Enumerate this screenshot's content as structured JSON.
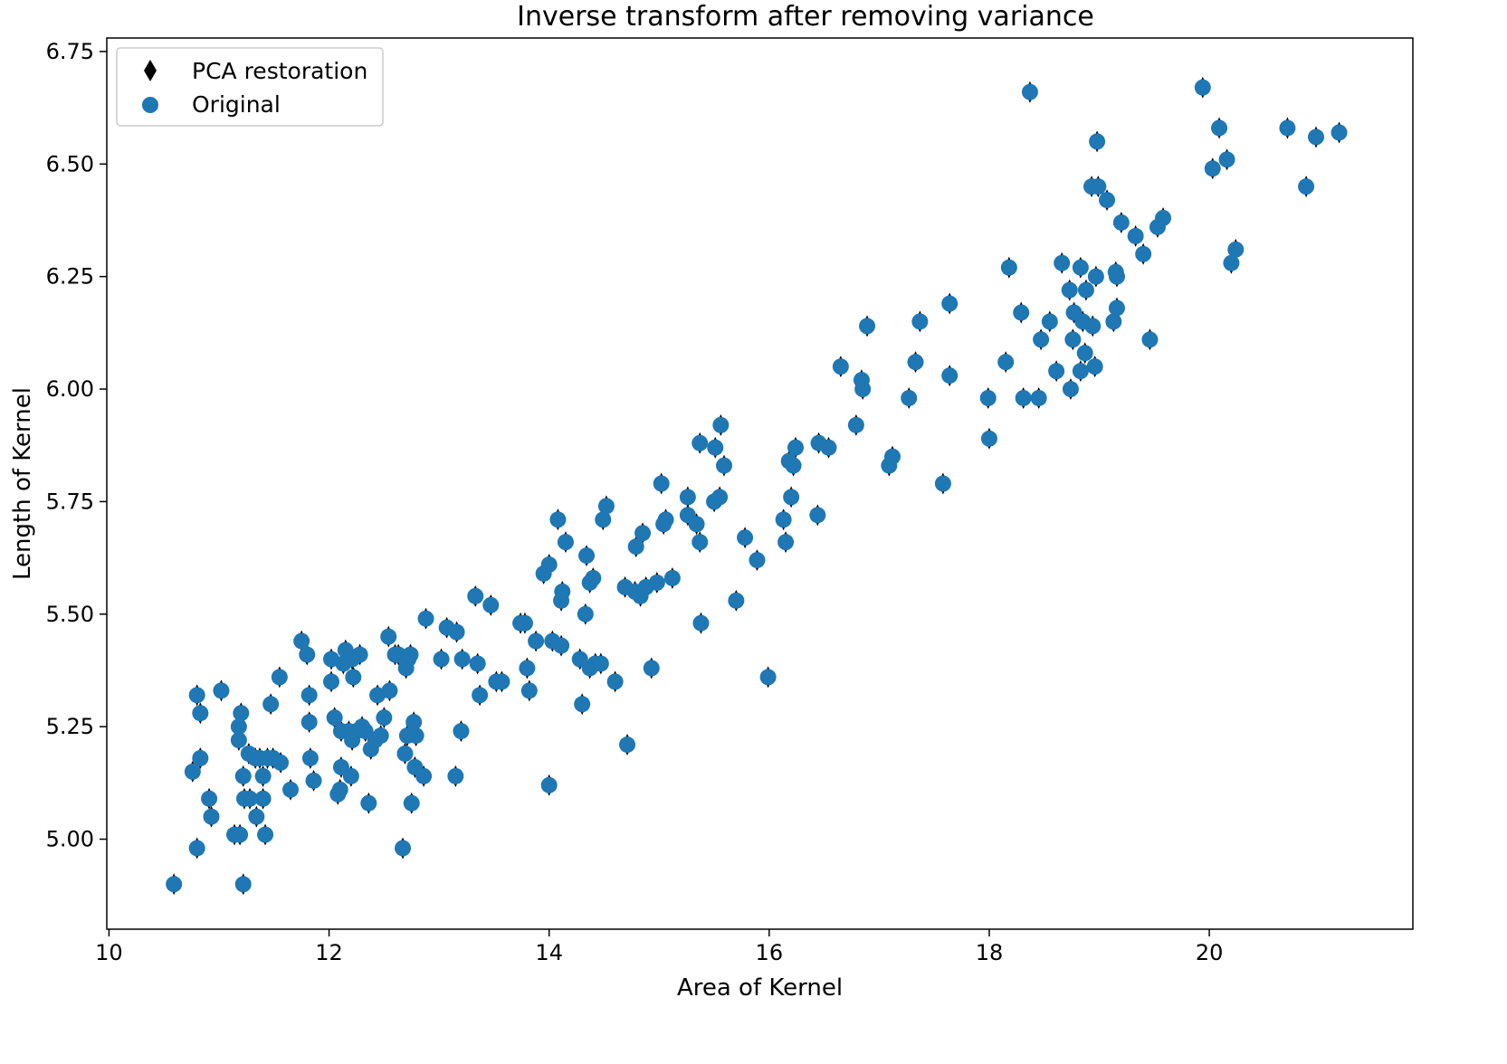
{
  "chart_data": {
    "type": "scatter",
    "title": "Inverse transform after removing variance",
    "xlabel": "Area of Kernel",
    "ylabel": "Length of Kernel",
    "xlim": [
      9.98,
      21.85
    ],
    "ylim": [
      4.8,
      6.78
    ],
    "xticks": [
      10,
      12,
      14,
      16,
      18,
      20
    ],
    "yticks": [
      5.0,
      5.25,
      5.5,
      5.75,
      6.0,
      6.25,
      6.5,
      6.75
    ],
    "xtick_labels": [
      "10",
      "12",
      "14",
      "16",
      "18",
      "20"
    ],
    "ytick_labels": [
      "5.00",
      "5.25",
      "5.50",
      "5.75",
      "6.00",
      "6.25",
      "6.50",
      "6.75"
    ],
    "grid": false,
    "legend": {
      "position": "top-left",
      "entries": [
        {
          "label": "PCA restoration",
          "marker": "diamond",
          "color": "#000000"
        },
        {
          "label": "Original",
          "marker": "circle",
          "color": "#1f77b4"
        }
      ]
    },
    "series": [
      {
        "name": "Original",
        "marker": "circle",
        "color": "#1f77b4",
        "points": [
          [
            10.59,
            4.9
          ],
          [
            10.76,
            5.15
          ],
          [
            10.8,
            5.32
          ],
          [
            10.8,
            4.98
          ],
          [
            10.83,
            5.18
          ],
          [
            10.83,
            5.28
          ],
          [
            10.91,
            5.09
          ],
          [
            10.93,
            5.05
          ],
          [
            11.02,
            5.33
          ],
          [
            11.14,
            5.01
          ],
          [
            11.18,
            5.22
          ],
          [
            11.18,
            5.25
          ],
          [
            11.19,
            5.01
          ],
          [
            11.2,
            5.28
          ],
          [
            11.22,
            4.9
          ],
          [
            11.22,
            5.14
          ],
          [
            11.23,
            5.09
          ],
          [
            11.27,
            5.19
          ],
          [
            11.28,
            5.09
          ],
          [
            11.33,
            5.18
          ],
          [
            11.34,
            5.05
          ],
          [
            11.37,
            5.18
          ],
          [
            11.4,
            5.14
          ],
          [
            11.4,
            5.09
          ],
          [
            11.42,
            5.01
          ],
          [
            11.44,
            5.18
          ],
          [
            11.47,
            5.3
          ],
          [
            11.49,
            5.18
          ],
          [
            11.55,
            5.36
          ],
          [
            11.56,
            5.17
          ],
          [
            11.65,
            5.11
          ],
          [
            11.75,
            5.44
          ],
          [
            11.8,
            5.41
          ],
          [
            11.82,
            5.32
          ],
          [
            11.82,
            5.26
          ],
          [
            11.83,
            5.18
          ],
          [
            11.86,
            5.13
          ],
          [
            12.02,
            5.4
          ],
          [
            12.02,
            5.35
          ],
          [
            12.05,
            5.27
          ],
          [
            12.08,
            5.1
          ],
          [
            12.1,
            5.11
          ],
          [
            12.11,
            5.24
          ],
          [
            12.11,
            5.16
          ],
          [
            12.13,
            5.39
          ],
          [
            12.15,
            5.42
          ],
          [
            12.18,
            5.24
          ],
          [
            12.2,
            5.14
          ],
          [
            12.21,
            5.4
          ],
          [
            12.21,
            5.22
          ],
          [
            12.22,
            5.36
          ],
          [
            12.25,
            5.24
          ],
          [
            12.28,
            5.41
          ],
          [
            12.3,
            5.25
          ],
          [
            12.33,
            5.24
          ],
          [
            12.36,
            5.08
          ],
          [
            12.38,
            5.2
          ],
          [
            12.42,
            5.22
          ],
          [
            12.44,
            5.32
          ],
          [
            12.47,
            5.23
          ],
          [
            12.5,
            5.27
          ],
          [
            12.54,
            5.45
          ],
          [
            12.55,
            5.33
          ],
          [
            12.6,
            5.41
          ],
          [
            12.63,
            5.41
          ],
          [
            12.67,
            4.98
          ],
          [
            12.69,
            5.19
          ],
          [
            12.7,
            5.38
          ],
          [
            12.71,
            5.23
          ],
          [
            12.72,
            5.4
          ],
          [
            12.74,
            5.41
          ],
          [
            12.75,
            5.08
          ],
          [
            12.77,
            5.26
          ],
          [
            12.78,
            5.16
          ],
          [
            12.79,
            5.23
          ],
          [
            12.86,
            5.14
          ],
          [
            12.88,
            5.49
          ],
          [
            13.02,
            5.4
          ],
          [
            13.07,
            5.47
          ],
          [
            13.15,
            5.14
          ],
          [
            13.16,
            5.46
          ],
          [
            13.2,
            5.24
          ],
          [
            13.21,
            5.4
          ],
          [
            13.33,
            5.54
          ],
          [
            13.35,
            5.39
          ],
          [
            13.37,
            5.32
          ],
          [
            13.47,
            5.52
          ],
          [
            13.52,
            5.35
          ],
          [
            13.57,
            5.35
          ],
          [
            13.74,
            5.48
          ],
          [
            13.78,
            5.48
          ],
          [
            13.8,
            5.38
          ],
          [
            13.82,
            5.33
          ],
          [
            13.88,
            5.44
          ],
          [
            13.95,
            5.59
          ],
          [
            14.0,
            5.61
          ],
          [
            14.0,
            5.12
          ],
          [
            14.03,
            5.44
          ],
          [
            14.08,
            5.71
          ],
          [
            14.11,
            5.43
          ],
          [
            14.11,
            5.53
          ],
          [
            14.12,
            5.55
          ],
          [
            14.15,
            5.66
          ],
          [
            14.28,
            5.4
          ],
          [
            14.3,
            5.3
          ],
          [
            14.33,
            5.5
          ],
          [
            14.34,
            5.63
          ],
          [
            14.37,
            5.38
          ],
          [
            14.37,
            5.57
          ],
          [
            14.4,
            5.58
          ],
          [
            14.42,
            5.39
          ],
          [
            14.47,
            5.39
          ],
          [
            14.49,
            5.71
          ],
          [
            14.52,
            5.74
          ],
          [
            14.6,
            5.35
          ],
          [
            14.69,
            5.56
          ],
          [
            14.71,
            5.21
          ],
          [
            14.78,
            5.55
          ],
          [
            14.79,
            5.65
          ],
          [
            14.83,
            5.54
          ],
          [
            14.85,
            5.68
          ],
          [
            14.88,
            5.56
          ],
          [
            14.93,
            5.38
          ],
          [
            14.98,
            5.57
          ],
          [
            15.02,
            5.79
          ],
          [
            15.04,
            5.7
          ],
          [
            15.06,
            5.71
          ],
          [
            15.12,
            5.58
          ],
          [
            15.26,
            5.76
          ],
          [
            15.26,
            5.72
          ],
          [
            15.34,
            5.7
          ],
          [
            15.37,
            5.66
          ],
          [
            15.37,
            5.88
          ],
          [
            15.38,
            5.48
          ],
          [
            15.5,
            5.75
          ],
          [
            15.51,
            5.87
          ],
          [
            15.55,
            5.76
          ],
          [
            15.56,
            5.92
          ],
          [
            15.59,
            5.83
          ],
          [
            15.7,
            5.53
          ],
          [
            15.78,
            5.67
          ],
          [
            15.89,
            5.62
          ],
          [
            15.99,
            5.36
          ],
          [
            16.13,
            5.71
          ],
          [
            16.15,
            5.66
          ],
          [
            16.18,
            5.84
          ],
          [
            16.2,
            5.76
          ],
          [
            16.22,
            5.83
          ],
          [
            16.24,
            5.87
          ],
          [
            16.44,
            5.72
          ],
          [
            16.45,
            5.88
          ],
          [
            16.54,
            5.87
          ],
          [
            16.65,
            6.05
          ],
          [
            16.79,
            5.92
          ],
          [
            16.84,
            6.02
          ],
          [
            16.85,
            6.0
          ],
          [
            16.89,
            6.14
          ],
          [
            17.09,
            5.83
          ],
          [
            17.12,
            5.85
          ],
          [
            17.27,
            5.98
          ],
          [
            17.33,
            6.06
          ],
          [
            17.37,
            6.15
          ],
          [
            17.58,
            5.79
          ],
          [
            17.64,
            6.03
          ],
          [
            17.64,
            6.19
          ],
          [
            17.99,
            5.98
          ],
          [
            18.0,
            5.89
          ],
          [
            18.15,
            6.06
          ],
          [
            18.18,
            6.27
          ],
          [
            18.29,
            6.17
          ],
          [
            18.31,
            5.98
          ],
          [
            18.37,
            6.66
          ],
          [
            18.45,
            5.98
          ],
          [
            18.47,
            6.11
          ],
          [
            18.55,
            6.15
          ],
          [
            18.61,
            6.04
          ],
          [
            18.66,
            6.28
          ],
          [
            18.73,
            6.22
          ],
          [
            18.74,
            6.0
          ],
          [
            18.76,
            6.11
          ],
          [
            18.77,
            6.17
          ],
          [
            18.83,
            6.27
          ],
          [
            18.83,
            6.04
          ],
          [
            18.85,
            6.15
          ],
          [
            18.87,
            6.08
          ],
          [
            18.88,
            6.22
          ],
          [
            18.93,
            6.45
          ],
          [
            18.94,
            6.14
          ],
          [
            18.96,
            6.05
          ],
          [
            18.97,
            6.25
          ],
          [
            18.98,
            6.55
          ],
          [
            18.99,
            6.45
          ],
          [
            19.07,
            6.42
          ],
          [
            19.13,
            6.15
          ],
          [
            19.15,
            6.26
          ],
          [
            19.16,
            6.18
          ],
          [
            19.16,
            6.25
          ],
          [
            19.2,
            6.37
          ],
          [
            19.33,
            6.34
          ],
          [
            19.4,
            6.3
          ],
          [
            19.46,
            6.11
          ],
          [
            19.53,
            6.36
          ],
          [
            19.58,
            6.38
          ],
          [
            19.94,
            6.67
          ],
          [
            20.03,
            6.49
          ],
          [
            20.09,
            6.58
          ],
          [
            20.16,
            6.51
          ],
          [
            20.2,
            6.28
          ],
          [
            20.24,
            6.31
          ],
          [
            20.71,
            6.58
          ],
          [
            20.88,
            6.45
          ],
          [
            20.97,
            6.56
          ],
          [
            21.18,
            6.57
          ]
        ]
      }
    ]
  }
}
